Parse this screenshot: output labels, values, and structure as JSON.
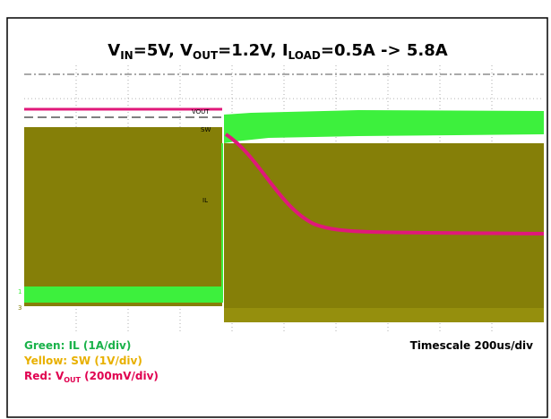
{
  "title_segments": [
    {
      "text": "V"
    },
    {
      "sub": "IN"
    },
    {
      "text": "=5V, V"
    },
    {
      "sub": "OUT"
    },
    {
      "text": "=1.2V, I"
    },
    {
      "sub": "LOAD"
    },
    {
      "text": "=0.5A -> 5.8A"
    }
  ],
  "scope_labels": {
    "vout": "VOUT",
    "sw": "SW",
    "il": "IL",
    "ch1": "1",
    "ch3": "3"
  },
  "legend": {
    "green": "Green: IL (1A/div)",
    "yellow": "Yellow: SW (1V/div)",
    "red_prefix": "Red: V",
    "red_sub": "OUT",
    "red_suffix": " (200mV/div)"
  },
  "timescale": "Timescale 200us/div"
}
